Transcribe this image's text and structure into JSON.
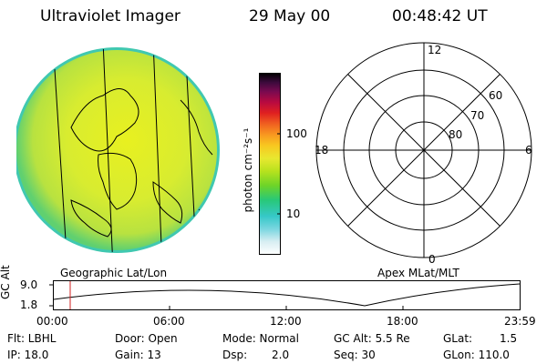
{
  "header": {
    "title": "Ultraviolet Imager",
    "date": "29 May 00",
    "time": "00:48:42 UT"
  },
  "colorbar": {
    "unit_label": "photon cm⁻²s⁻¹",
    "tick_100": "100",
    "tick_10": "10",
    "colors": [
      "#ffffff",
      "#d8eef2",
      "#7ad6e0",
      "#36c8c8",
      "#28c878",
      "#6ed428",
      "#b8e21e",
      "#e8e830",
      "#f8c820",
      "#f89820",
      "#f06020",
      "#e02020",
      "#b80a40",
      "#780a50",
      "#3c0a3c",
      "#000000"
    ]
  },
  "polar_grid": {
    "mlt_top": "12",
    "mlt_left": "18",
    "mlt_right": "6",
    "mlt_bottom": "0",
    "lat_60": "60",
    "lat_70": "70",
    "lat_80": "80"
  },
  "labels": {
    "geographic": "Geographic Lat/Lon",
    "apex": "Apex MLat/MLT"
  },
  "altitude_plot": {
    "axis_label": "GC Alt",
    "y_top": "9.0",
    "y_bottom": "1.8",
    "x_ticks": [
      "00:00",
      "06:00",
      "12:00",
      "18:00",
      "23:59"
    ],
    "marker_color": "#d02020"
  },
  "info": {
    "flt": "Flt: LBHL",
    "ip": "IP: 18.0",
    "door": "Door: Open",
    "gain": "Gain: 13",
    "mode": "Mode: Normal",
    "dsp_label": "Dsp:",
    "dsp_value": "2.0",
    "gc_alt": "GC Alt: 5.5 Re",
    "seq": "Seq: 30",
    "glat_label": "GLat:",
    "glat_value": "1.5",
    "glon": "GLon: 110.0"
  }
}
